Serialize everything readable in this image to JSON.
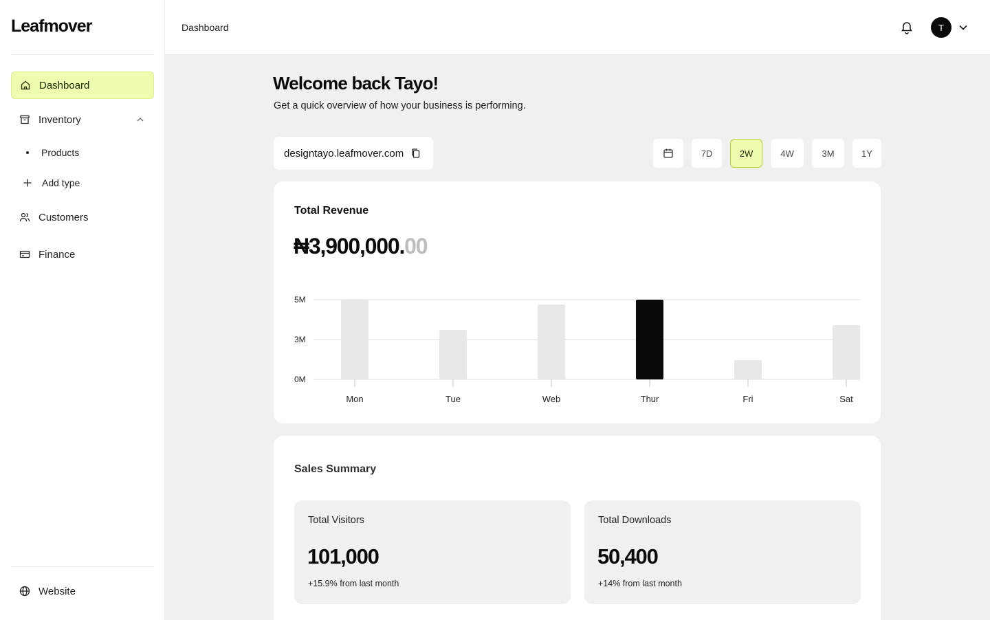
{
  "brand": {
    "logo": "Leafmover"
  },
  "sidebar": {
    "items": [
      {
        "label": "Dashboard",
        "icon": "home-icon"
      },
      {
        "label": "Inventory",
        "icon": "archive-box-icon"
      },
      {
        "label": "Customers",
        "icon": "users-icon"
      },
      {
        "label": "Finance",
        "icon": "credit-card-icon"
      }
    ],
    "sub_items": [
      {
        "label": "Products"
      },
      {
        "label": "Add type"
      }
    ],
    "footer": {
      "label": "Website",
      "icon": "globe-icon"
    }
  },
  "header": {
    "title": "Dashboard",
    "avatar_initial": "T"
  },
  "main": {
    "welcome": "Welcome back Tayo!",
    "subtitle": "Get a quick overview of how your business is performing.",
    "store_url": "designtayo.leafmover.com",
    "ranges": [
      "7D",
      "2W",
      "4W",
      "3M",
      "1Y"
    ],
    "active_range": "2W",
    "revenue": {
      "title": "Total Revenue",
      "amount_main": "₦3,900,000.",
      "amount_decimal": "00"
    },
    "sales_summary": {
      "title": "Sales Summary",
      "stats": [
        {
          "label": "Total Visitors",
          "value": "101,000",
          "change": "+15.9% from last month"
        },
        {
          "label": "Total Downloads",
          "value": "50,400",
          "change": "+14% from last month"
        }
      ]
    }
  },
  "colors": {
    "accent": "#eefcb0",
    "accent_border": "#b9cf3c",
    "highlight_bar": "#0a0a0a",
    "bar": "#e8e8e8"
  },
  "chart_data": {
    "type": "bar",
    "categories": [
      "Mon",
      "Tue",
      "Web",
      "Thur",
      "Fri",
      "Sat"
    ],
    "values": [
      5,
      3.1,
      4.7,
      5,
      1.2,
      3.4
    ],
    "highlight": "Thur",
    "yticks": [
      "0M",
      "3M",
      "5M"
    ],
    "ytick_values": [
      0,
      2.5,
      5
    ],
    "ylim": [
      0,
      5
    ],
    "grid": true
  }
}
